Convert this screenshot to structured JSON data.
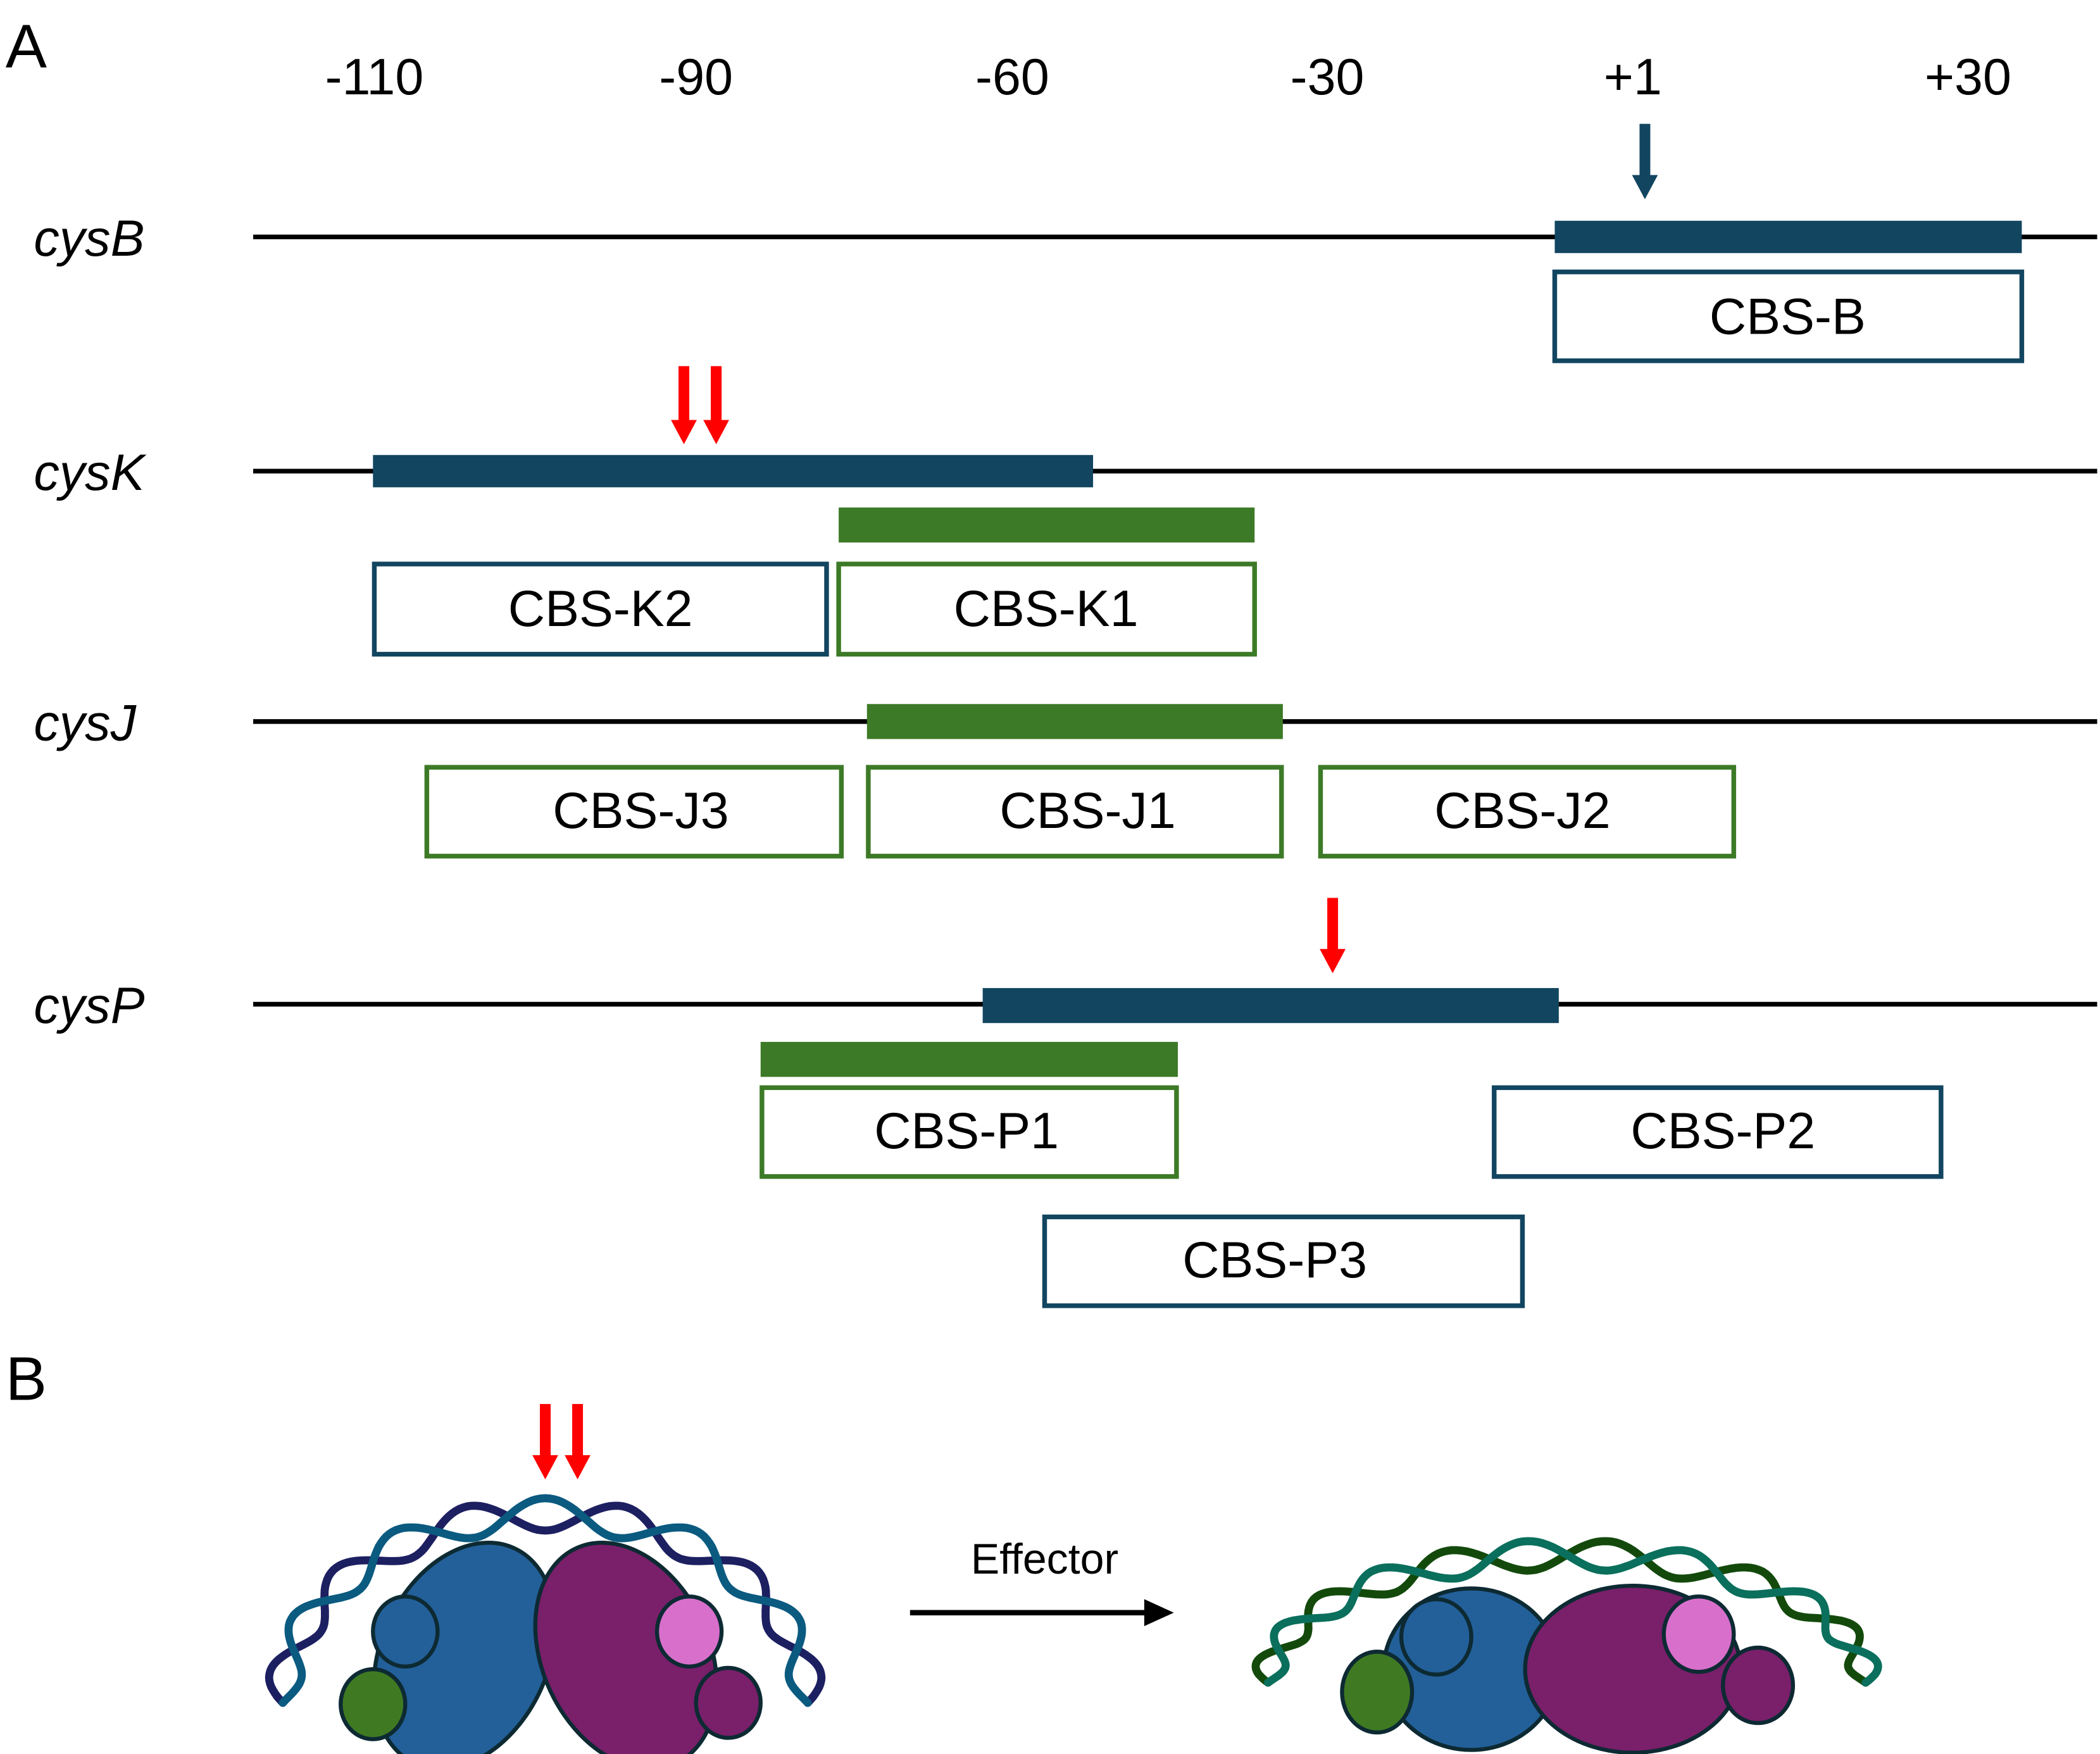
{
  "panels": {
    "a": "A",
    "b": "B"
  },
  "ticks": [
    "-110",
    "-90",
    "-60",
    "-30",
    "+1",
    "+30"
  ],
  "genes": [
    "cysB",
    "cysK",
    "cysJ",
    "cysP"
  ],
  "boxes": {
    "b": "CBS-B",
    "k2": "CBS-K2",
    "k1": "CBS-K1",
    "j3": "CBS-J3",
    "j1": "CBS-J1",
    "j2": "CBS-J2",
    "p1": "CBS-P1",
    "p2": "CBS-P2",
    "p3": "CBS-P3"
  },
  "effector_label": "Effector",
  "colors": {
    "dark_blue": "#124560",
    "green": "#3d7a27",
    "red": "#ff0000",
    "protein_blue": "#23609a",
    "protein_purple": "#7a1f6a",
    "protein_pink": "#d86fcb",
    "protein_green": "#3f7a22",
    "dna_navy": "#1c1f60",
    "dna_teal": "#0b5a80",
    "dna_darkgreen": "#134a0c",
    "dna_seagreen": "#0a6f5c"
  }
}
